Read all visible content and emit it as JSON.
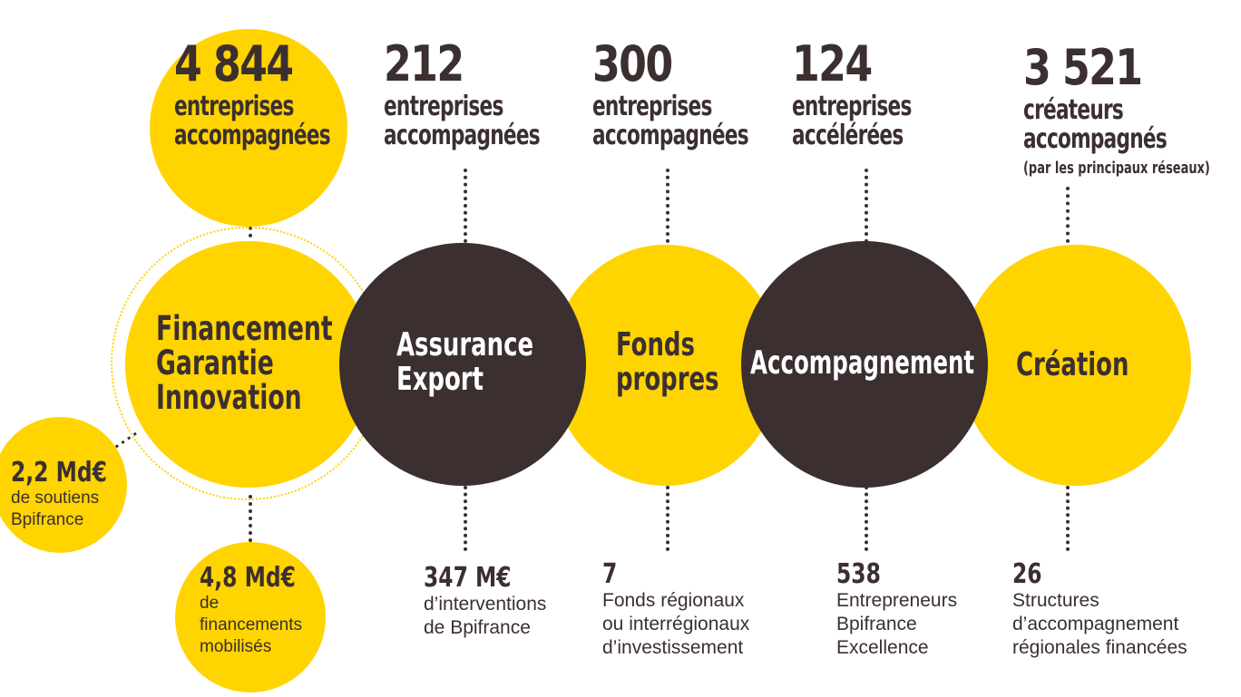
{
  "top": [
    {
      "number": "4 844",
      "line1": "entreprises",
      "line2": "accompagnées",
      "note": ""
    },
    {
      "number": "212",
      "line1": "entreprises",
      "line2": "accompagnées",
      "note": ""
    },
    {
      "number": "300",
      "line1": "entreprises",
      "line2": "accompagnées",
      "note": ""
    },
    {
      "number": "124",
      "line1": "entreprises",
      "line2": "accélérées",
      "note": ""
    },
    {
      "number": "3 521",
      "line1": "créateurs",
      "line2": "accompagnés",
      "note": "(par les principaux réseaux)"
    }
  ],
  "centers": [
    {
      "line1": "Financement",
      "line2": "Garantie",
      "line3": "Innovation"
    },
    {
      "line1": "Assurance",
      "line2": "Export"
    },
    {
      "line1": "Fonds",
      "line2": "propres"
    },
    {
      "line1": "Accompagnement"
    },
    {
      "line1": "Création"
    }
  ],
  "side_stats": [
    {
      "number": "2,2 Md€",
      "line1": "de soutiens",
      "line2": "Bpifrance"
    },
    {
      "number": "4,8 Md€",
      "line1": "de",
      "line2": "financements",
      "line3": "mobilisés"
    }
  ],
  "bottom": [
    {
      "number": "347 M€",
      "line1": "d’interventions",
      "line2": "de Bpifrance"
    },
    {
      "number": "7",
      "line1": "Fonds régionaux",
      "line2": "ou interrégionaux",
      "line3": "d’investissement"
    },
    {
      "number": "538",
      "line1": "Entrepreneurs",
      "line2": "Bpifrance",
      "line3": "Excellence"
    },
    {
      "number": "26",
      "line1": "Structures",
      "line2": "d’accompagnement",
      "line3": "régionales financées"
    }
  ],
  "colors": {
    "yellow": "#ffd400",
    "dark": "#3b2f30",
    "text": "#3b2f30"
  }
}
